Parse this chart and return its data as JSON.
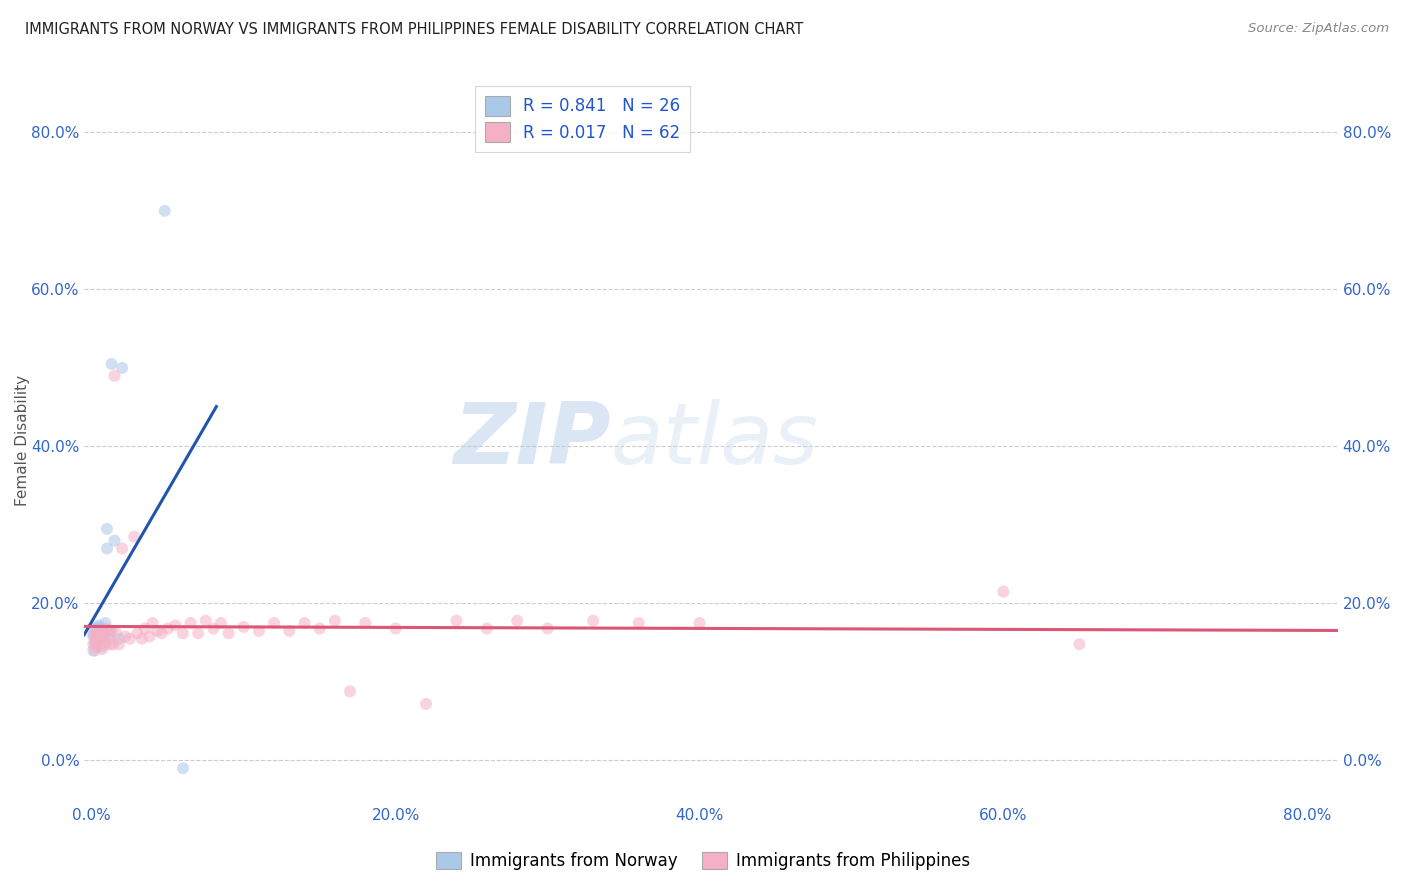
{
  "title": "IMMIGRANTS FROM NORWAY VS IMMIGRANTS FROM PHILIPPINES FEMALE DISABILITY CORRELATION CHART",
  "source": "Source: ZipAtlas.com",
  "xlabel_bottom": "Immigrants from Norway",
  "xlabel_bottom2": "Immigrants from Philippines",
  "ylabel": "Female Disability",
  "xlim": [
    -0.005,
    0.82
  ],
  "ylim": [
    -0.055,
    0.87
  ],
  "norway_R": 0.841,
  "norway_N": 26,
  "philippines_R": 0.017,
  "philippines_N": 62,
  "norway_color": "#aac8e8",
  "norway_line_color": "#2255aa",
  "philippines_color": "#f5b0c5",
  "philippines_line_color": "#dd5577",
  "norway_x": [
    0.001,
    0.001,
    0.002,
    0.002,
    0.003,
    0.003,
    0.004,
    0.004,
    0.005,
    0.005,
    0.006,
    0.006,
    0.007,
    0.007,
    0.008,
    0.009,
    0.01,
    0.01,
    0.011,
    0.012,
    0.013,
    0.015,
    0.018,
    0.02,
    0.048,
    0.06
  ],
  "norway_y": [
    0.14,
    0.16,
    0.15,
    0.168,
    0.155,
    0.148,
    0.162,
    0.17,
    0.158,
    0.172,
    0.145,
    0.162,
    0.158,
    0.168,
    0.155,
    0.175,
    0.27,
    0.295,
    0.165,
    0.162,
    0.505,
    0.28,
    0.155,
    0.5,
    0.7,
    -0.01
  ],
  "philippines_x": [
    0.001,
    0.001,
    0.002,
    0.002,
    0.003,
    0.003,
    0.004,
    0.005,
    0.005,
    0.006,
    0.007,
    0.007,
    0.008,
    0.009,
    0.01,
    0.011,
    0.012,
    0.013,
    0.014,
    0.015,
    0.016,
    0.018,
    0.02,
    0.022,
    0.025,
    0.028,
    0.03,
    0.033,
    0.035,
    0.038,
    0.04,
    0.043,
    0.046,
    0.05,
    0.055,
    0.06,
    0.065,
    0.07,
    0.075,
    0.08,
    0.085,
    0.09,
    0.1,
    0.11,
    0.12,
    0.13,
    0.14,
    0.15,
    0.16,
    0.17,
    0.18,
    0.2,
    0.22,
    0.24,
    0.26,
    0.28,
    0.3,
    0.33,
    0.36,
    0.4,
    0.6,
    0.65
  ],
  "philippines_y": [
    0.148,
    0.158,
    0.14,
    0.162,
    0.152,
    0.145,
    0.16,
    0.148,
    0.165,
    0.155,
    0.142,
    0.158,
    0.162,
    0.148,
    0.168,
    0.155,
    0.148,
    0.165,
    0.148,
    0.49,
    0.162,
    0.148,
    0.27,
    0.158,
    0.155,
    0.285,
    0.162,
    0.155,
    0.168,
    0.158,
    0.175,
    0.165,
    0.162,
    0.168,
    0.172,
    0.162,
    0.175,
    0.162,
    0.178,
    0.168,
    0.175,
    0.162,
    0.17,
    0.165,
    0.175,
    0.165,
    0.175,
    0.168,
    0.178,
    0.088,
    0.175,
    0.168,
    0.072,
    0.178,
    0.168,
    0.178,
    0.168,
    0.178,
    0.175,
    0.175,
    0.215,
    0.148
  ],
  "xticks": [
    0.0,
    0.2,
    0.4,
    0.6,
    0.8
  ],
  "yticks": [
    0.0,
    0.2,
    0.4,
    0.6,
    0.8
  ],
  "xtick_labels": [
    "0.0%",
    "20.0%",
    "40.0%",
    "60.0%",
    "80.0%"
  ],
  "ytick_labels": [
    "0.0%",
    "20.0%",
    "40.0%",
    "60.0%",
    "80.0%"
  ],
  "watermark_zip": "ZIP",
  "watermark_atlas": "atlas",
  "marker_size": 75,
  "marker_alpha": 0.55,
  "line_width": 2.2
}
